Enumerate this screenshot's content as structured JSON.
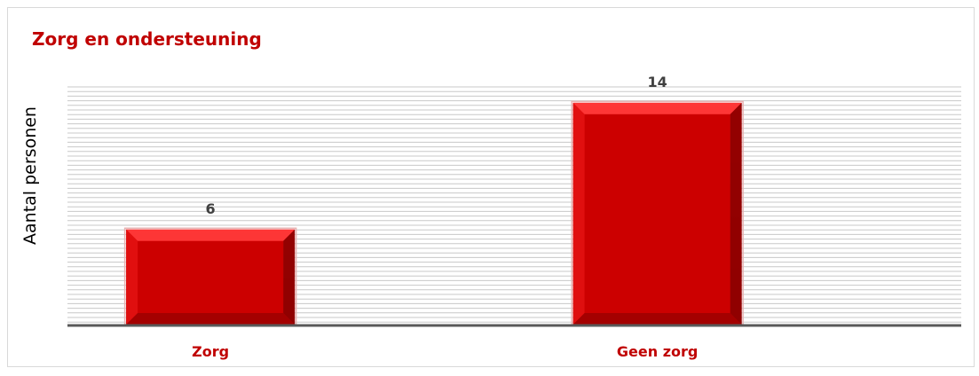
{
  "chart_data": {
    "type": "bar",
    "title": "Zorg en ondersteuning",
    "ylabel": "Aantal personen",
    "xlabel": "",
    "categories": [
      "Zorg",
      "Geen zorg"
    ],
    "values": [
      6,
      14
    ],
    "ylim": [
      0,
      15
    ],
    "grid": true,
    "legend": "none",
    "colors": {
      "bar": "#cc0000",
      "bar_light": "#ff3b3b",
      "bar_dark": "#8a0000",
      "title": "#c00000",
      "category_label": "#c00000",
      "value_label": "#404040",
      "gridline": "#c8c8c8",
      "axis": "#595959"
    }
  }
}
